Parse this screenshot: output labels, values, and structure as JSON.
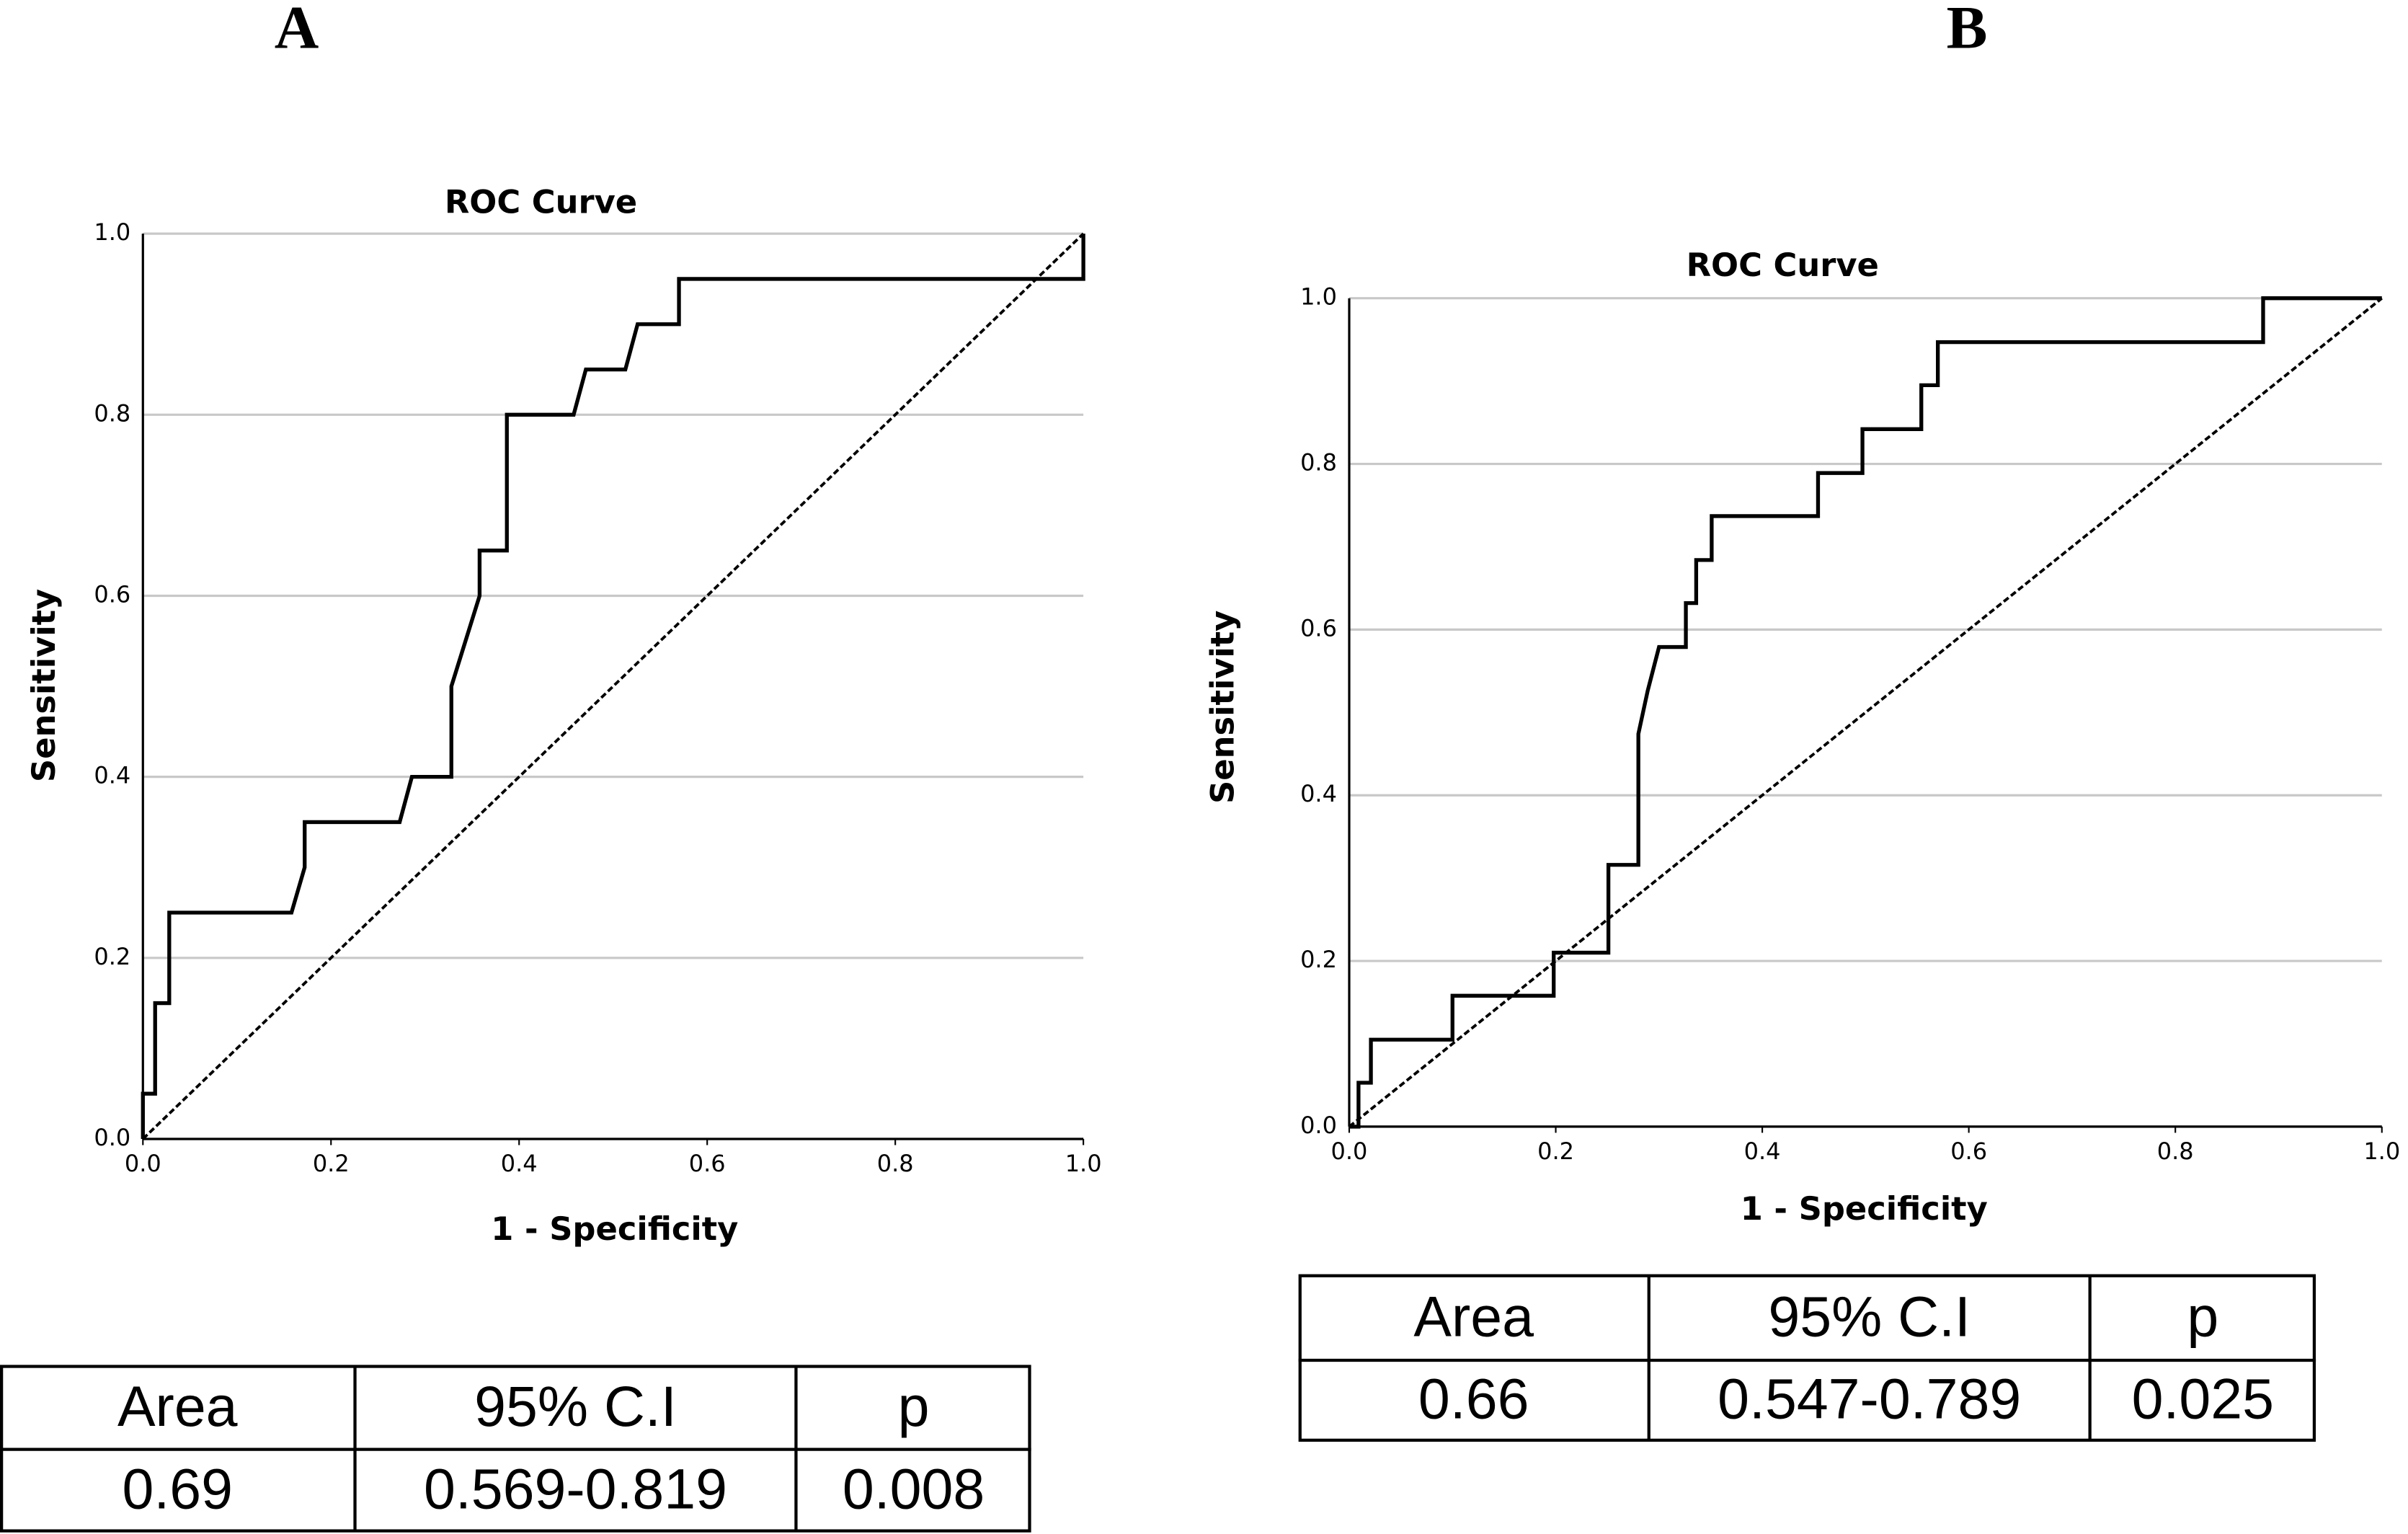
{
  "chart_data": [
    {
      "type": "line",
      "panel_label": "A",
      "title": "ROC Curve",
      "xlabel": "1 - Specificity",
      "ylabel": "Sensitivity",
      "xlim": [
        0,
        1
      ],
      "ylim": [
        0,
        1
      ],
      "xticks": [
        {
          "value": 0,
          "label": "0.0"
        },
        0.2,
        0.4,
        0.6,
        0.8,
        {
          "value": 1,
          "label": "1.0"
        }
      ],
      "yticks": [
        {
          "value": 0,
          "label": "0.0"
        },
        0.2,
        0.4,
        0.6,
        0.8,
        {
          "value": 1,
          "label": "1.0"
        }
      ],
      "grid": true,
      "series": [
        {
          "color": "#000000",
          "style": "solid",
          "x": [
            0,
            0,
            0.013,
            0.013,
            0.028,
            0.028,
            0.158,
            0.172,
            0.172,
            0.273,
            0.286,
            0.328,
            0.328,
            0.358,
            0.358,
            0.387,
            0.387,
            0.458,
            0.471,
            0.513,
            0.526,
            0.57,
            0.57,
            1,
            1
          ],
          "values": [
            0,
            0.05,
            0.05,
            0.15,
            0.15,
            0.25,
            0.25,
            0.3,
            0.35,
            0.35,
            0.4,
            0.4,
            0.5,
            0.6,
            0.65,
            0.65,
            0.8,
            0.8,
            0.85,
            0.85,
            0.9,
            0.9,
            0.95,
            0.95,
            1
          ]
        },
        {
          "color": "#000000",
          "style": "dashed",
          "x": [
            0,
            1
          ],
          "values": [
            0,
            1
          ]
        }
      ],
      "table": {
        "header": [
          "Area",
          "95% C.I",
          "p"
        ],
        "rows": [
          [
            "0.69",
            "0.569-0.819",
            "0.008"
          ]
        ]
      }
    },
    {
      "type": "line",
      "panel_label": "B",
      "title": "ROC Curve",
      "xlabel": "1 - Specificity",
      "ylabel": "Sensitivity",
      "xlim": [
        0,
        1
      ],
      "ylim": [
        0,
        1
      ],
      "xticks": [
        {
          "value": 0,
          "label": "0.0"
        },
        0.2,
        0.4,
        0.6,
        0.8,
        {
          "value": 1,
          "label": "1.0"
        }
      ],
      "yticks": [
        {
          "value": 0,
          "label": "0.0"
        },
        0.2,
        0.4,
        0.6,
        0.8,
        {
          "value": 1,
          "label": "1.0"
        }
      ],
      "grid": true,
      "series": [
        {
          "color": "#000000",
          "style": "solid",
          "x": [
            0,
            0.009,
            0.009,
            0.021,
            0.021,
            0.1,
            0.1,
            0.198,
            0.198,
            0.251,
            0.251,
            0.28,
            0.28,
            0.289,
            0.3,
            0.326,
            0.326,
            0.336,
            0.336,
            0.351,
            0.351,
            0.454,
            0.454,
            0.497,
            0.497,
            0.554,
            0.554,
            0.57,
            0.57,
            0.885,
            0.885,
            1
          ],
          "values": [
            0,
            0,
            0.053,
            0.053,
            0.105,
            0.105,
            0.158,
            0.158,
            0.21,
            0.21,
            0.316,
            0.316,
            0.474,
            0.526,
            0.579,
            0.579,
            0.632,
            0.632,
            0.684,
            0.684,
            0.737,
            0.737,
            0.789,
            0.789,
            0.842,
            0.842,
            0.895,
            0.895,
            0.947,
            0.947,
            1,
            1
          ]
        },
        {
          "color": "#000000",
          "style": "dashed",
          "x": [
            0,
            1
          ],
          "values": [
            0,
            1
          ]
        }
      ],
      "table": {
        "header": [
          "Area",
          "95% C.I",
          "p"
        ],
        "rows": [
          [
            "0.66",
            "0.547-0.789",
            "0.025"
          ]
        ]
      }
    }
  ]
}
